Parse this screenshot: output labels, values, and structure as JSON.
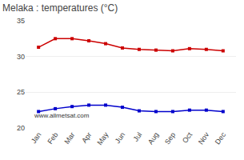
{
  "chart_data": {
    "type": "line",
    "title": "Melaka : temperatures (°C)",
    "categories": [
      "Jan",
      "Feb",
      "Mar",
      "Apr",
      "May",
      "Jun",
      "Jul",
      "Aug",
      "Sep",
      "Oct",
      "Nov",
      "Dec"
    ],
    "series": [
      {
        "color": "#cc0000",
        "marker": "square",
        "values": [
          31.3,
          32.5,
          32.5,
          32.2,
          31.8,
          31.2,
          31.0,
          30.9,
          30.8,
          31.1,
          31.0,
          30.8
        ]
      },
      {
        "color": "#0000cc",
        "marker": "square",
        "values": [
          22.3,
          22.7,
          23.0,
          23.2,
          23.2,
          22.9,
          22.4,
          22.3,
          22.3,
          22.5,
          22.5,
          22.3
        ]
      }
    ],
    "ylim": [
      20,
      35
    ],
    "yticks": [
      20,
      25,
      30,
      35
    ],
    "grid": "y",
    "annotations": [
      "www.allmetsat.com"
    ]
  }
}
